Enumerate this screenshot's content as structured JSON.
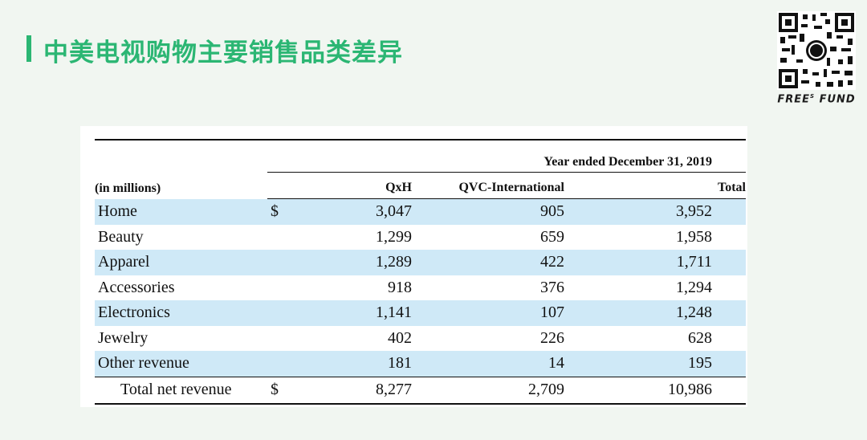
{
  "title": "中美电视购物主要销售品类差异",
  "brand": {
    "name_left": "FREE",
    "superscript": "S",
    "name_right": "FUND",
    "qr_icon": "qr-code-icon"
  },
  "table": {
    "period_header": "Year ended December 31, 2019",
    "unit_label": "(in millions)",
    "columns": [
      "QxH",
      "QVC-International",
      "Total"
    ],
    "currency_symbol": "$",
    "rows": [
      {
        "label": "Home",
        "show_currency": true,
        "values": [
          "3,047",
          "905",
          "3,952"
        ]
      },
      {
        "label": "Beauty",
        "show_currency": false,
        "values": [
          "1,299",
          "659",
          "1,958"
        ]
      },
      {
        "label": "Apparel",
        "show_currency": false,
        "values": [
          "1,289",
          "422",
          "1,711"
        ]
      },
      {
        "label": "Accessories",
        "show_currency": false,
        "values": [
          "918",
          "376",
          "1,294"
        ]
      },
      {
        "label": "Electronics",
        "show_currency": false,
        "values": [
          "1,141",
          "107",
          "1,248"
        ]
      },
      {
        "label": "Jewelry",
        "show_currency": false,
        "values": [
          "402",
          "226",
          "628"
        ]
      },
      {
        "label": "Other revenue",
        "show_currency": false,
        "values": [
          "181",
          "14",
          "195"
        ]
      }
    ],
    "total": {
      "label": "Total net revenue",
      "values": [
        "8,277",
        "2,709",
        "10,986"
      ]
    },
    "shade_color": "#cfe9f7"
  },
  "accent_color": "#2bb673"
}
